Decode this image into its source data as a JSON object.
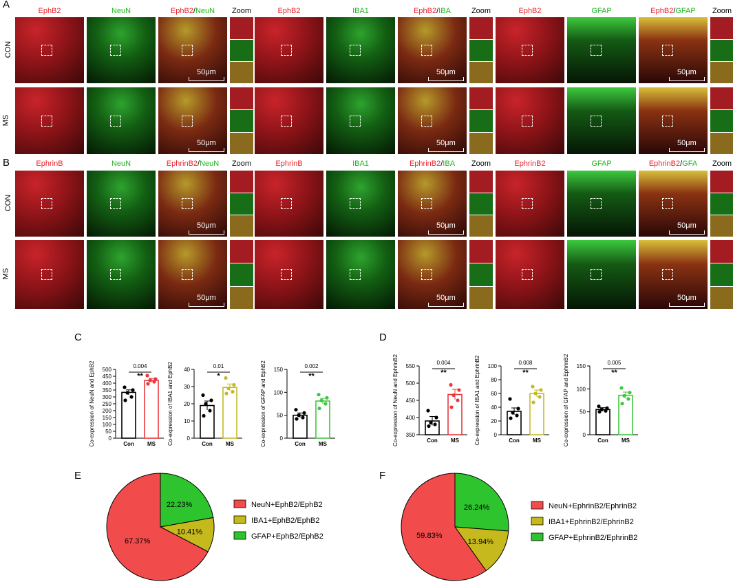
{
  "panel_letters": {
    "A": "A",
    "B": "B",
    "C": "C",
    "D": "D",
    "E": "E",
    "F": "F"
  },
  "panelA": {
    "groups": [
      {
        "c1": "EphB2",
        "c2": "NeuN",
        "c3_red": "EphB2",
        "c3_sep": "/",
        "c3_green": "NeuN",
        "zoom": "Zoom"
      },
      {
        "c1": "EphB2",
        "c2": "IBA1",
        "c3_red": "EphB2",
        "c3_sep": "/",
        "c3_green": "IBA",
        "zoom": "Zoom"
      },
      {
        "c1": "EphB2",
        "c2": "GFAP",
        "c3_red": "EphB2",
        "c3_sep": "/",
        "c3_green": "GFAP",
        "zoom": "Zoom"
      }
    ],
    "rows": [
      "CON",
      "MS"
    ],
    "scale": "50μm"
  },
  "panelB": {
    "groups": [
      {
        "c1": "EphrinB",
        "c2": "NeuN",
        "c3_red": "EphrinB2",
        "c3_sep": "/",
        "c3_green": "NeuN",
        "zoom": "Zoom"
      },
      {
        "c1": "EphrinB",
        "c2": "IBA1",
        "c3_red": "EphrinB2",
        "c3_sep": "/",
        "c3_green": "IBA",
        "zoom": "Zoom"
      },
      {
        "c1": "EphrinB2",
        "c2": "GFAP",
        "c3_red": "EphrinB2",
        "c3_sep": "/",
        "c3_green": "GFA",
        "zoom": "Zoom"
      }
    ],
    "rows": [
      "CON",
      "MS"
    ],
    "scale": "50μm"
  },
  "chart_data": [
    {
      "id": "C1",
      "type": "bar",
      "ylabel": "Co-expression of NeuN and EphB2",
      "categories": [
        "Con",
        "MS"
      ],
      "values": [
        333,
        420
      ],
      "errors": [
        18,
        14
      ],
      "ylim": [
        0,
        500
      ],
      "yticks": [
        0,
        50,
        100,
        150,
        200,
        250,
        300,
        350,
        400,
        450,
        500
      ],
      "points": [
        [
          370,
          350,
          330,
          300,
          275
        ],
        [
          455,
          430,
          420,
          410,
          395
        ]
      ],
      "pvalue": "0.004",
      "stars": "**",
      "colors": [
        "#000000",
        "#e8383d"
      ]
    },
    {
      "id": "C2",
      "type": "bar",
      "ylabel": "Co-expression of IBA1 and EphB2",
      "categories": [
        "Con",
        "MS"
      ],
      "values": [
        19,
        29.5
      ],
      "errors": [
        2.6,
        2
      ],
      "ylim": [
        0,
        40
      ],
      "yticks": [
        0,
        10,
        20,
        30,
        40
      ],
      "points": [
        [
          25,
          22,
          20,
          16,
          13
        ],
        [
          35,
          31,
          29,
          27,
          26
        ]
      ],
      "pvalue": "0.01",
      "stars": "*",
      "colors": [
        "#000000",
        "#c6b927"
      ]
    },
    {
      "id": "C3",
      "type": "bar",
      "ylabel": "Co-expression of GFAP and EphB2",
      "categories": [
        "Con",
        "MS"
      ],
      "values": [
        50,
        81
      ],
      "errors": [
        5,
        6
      ],
      "ylim": [
        0,
        150
      ],
      "yticks": [
        0,
        50,
        100,
        150
      ],
      "points": [
        [
          62,
          55,
          50,
          45,
          42
        ],
        [
          95,
          88,
          82,
          75,
          65
        ]
      ],
      "pvalue": "0.002",
      "stars": "**",
      "colors": [
        "#000000",
        "#3ec63e"
      ]
    },
    {
      "id": "D1",
      "type": "bar",
      "ylabel": "Co-expression of NeuN and EphrinB2",
      "categories": [
        "Con",
        "MS"
      ],
      "values": [
        390,
        467
      ],
      "errors": [
        13,
        15
      ],
      "ylim": [
        350,
        550
      ],
      "yticks": [
        350,
        400,
        450,
        500,
        550
      ],
      "points": [
        [
          420,
          400,
          385,
          380,
          375
        ],
        [
          495,
          480,
          465,
          450,
          430
        ]
      ],
      "pvalue": "0.004",
      "stars": "**",
      "colors": [
        "#000000",
        "#e8383d"
      ]
    },
    {
      "id": "D2",
      "type": "bar",
      "ylabel": "Co-expression of IBA1 and EphrinB2",
      "categories": [
        "Con",
        "MS"
      ],
      "values": [
        34,
        60
      ],
      "errors": [
        5,
        5
      ],
      "ylim": [
        0,
        100
      ],
      "yticks": [
        0,
        20,
        40,
        60,
        80,
        100
      ],
      "points": [
        [
          52,
          38,
          32,
          28,
          24
        ],
        [
          70,
          65,
          60,
          55,
          47
        ]
      ],
      "pvalue": "0.008",
      "stars": "**",
      "colors": [
        "#000000",
        "#c6b927"
      ]
    },
    {
      "id": "D3",
      "type": "bar",
      "ylabel": "Co-expression of GFAP and EphrinB2",
      "categories": [
        "Con",
        "MS"
      ],
      "values": [
        55,
        86
      ],
      "errors": [
        4,
        7
      ],
      "ylim": [
        0,
        150
      ],
      "yticks": [
        0,
        50,
        100,
        150
      ],
      "points": [
        [
          62,
          58,
          55,
          52,
          50
        ],
        [
          102,
          92,
          85,
          78,
          68
        ]
      ],
      "pvalue": "0.005",
      "stars": "**",
      "colors": [
        "#000000",
        "#3ec63e"
      ]
    },
    {
      "id": "E",
      "type": "pie",
      "values": [
        67.37,
        10.41,
        22.23
      ],
      "labels": [
        "67.37%",
        "10.41%",
        "22.23%"
      ],
      "legend": [
        "NeuN+EphB2/EphB2",
        "IBA1+EphB2/EphB2",
        "GFAP+EphB2/EphB2"
      ],
      "colors": [
        "#f24b4b",
        "#c6b91e",
        "#2ec42e"
      ]
    },
    {
      "id": "F",
      "type": "pie",
      "values": [
        59.83,
        13.94,
        26.24
      ],
      "labels": [
        "59.83%",
        "13.94%",
        "26.24%"
      ],
      "legend": [
        "NeuN+EphrinB2/EphrinB2",
        "IBA1+EphrinB2/EphrinB2",
        "GFAP+EphrinB2/EphrinB2"
      ],
      "colors": [
        "#f24b4b",
        "#c6b91e",
        "#2ec42e"
      ]
    }
  ]
}
